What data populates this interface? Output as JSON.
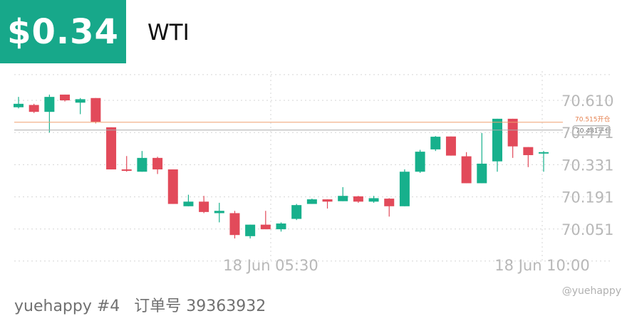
{
  "header": {
    "price": "$0.34",
    "symbol": "WTI"
  },
  "footer": {
    "user": "yuehappy #4",
    "order_label": "订单号 39363932",
    "watermark": "@yuehappy"
  },
  "colors": {
    "up": "#17b08c",
    "down": "#e24a5a",
    "accent": "#17a88a",
    "open_line": "#f0a070",
    "close_line": "#aaaaaa"
  },
  "chart_data": {
    "type": "candlestick",
    "y_ticks": [
      "70.610",
      "70.471",
      "70.331",
      "70.191",
      "70.051"
    ],
    "x_ticks": [
      "18 Jun 05:30",
      "18 Jun 10:00"
    ],
    "ylim": [
      69.98,
      70.72
    ],
    "grid": true,
    "lines": [
      {
        "label": "70.515开仓",
        "value": 70.515,
        "color": "#f0a070"
      },
      {
        "label": "70.481平仓",
        "value": 70.481,
        "color": "#aaaaaa"
      }
    ],
    "candles": [
      {
        "o": 70.58,
        "c": 70.595,
        "h": 70.625,
        "l": 70.575
      },
      {
        "o": 70.59,
        "c": 70.56,
        "h": 70.595,
        "l": 70.555
      },
      {
        "o": 70.56,
        "c": 70.625,
        "h": 70.635,
        "l": 70.47
      },
      {
        "o": 70.635,
        "c": 70.61,
        "h": 70.635,
        "l": 70.605
      },
      {
        "o": 70.6,
        "c": 70.615,
        "h": 70.62,
        "l": 70.55
      },
      {
        "o": 70.62,
        "c": 70.517,
        "h": 70.62,
        "l": 70.51
      },
      {
        "o": 70.493,
        "c": 70.31,
        "h": 70.493,
        "l": 70.31
      },
      {
        "o": 70.31,
        "c": 70.305,
        "h": 70.368,
        "l": 70.3
      },
      {
        "o": 70.3,
        "c": 70.36,
        "h": 70.39,
        "l": 70.3
      },
      {
        "o": 70.36,
        "c": 70.31,
        "h": 70.365,
        "l": 70.29
      },
      {
        "o": 70.31,
        "c": 70.16,
        "h": 70.31,
        "l": 70.16
      },
      {
        "o": 70.15,
        "c": 70.17,
        "h": 70.2,
        "l": 70.15
      },
      {
        "o": 70.17,
        "c": 70.125,
        "h": 70.195,
        "l": 70.12
      },
      {
        "o": 70.12,
        "c": 70.13,
        "h": 70.165,
        "l": 70.08
      },
      {
        "o": 70.12,
        "c": 70.025,
        "h": 70.13,
        "l": 70.01
      },
      {
        "o": 70.02,
        "c": 70.07,
        "h": 70.07,
        "l": 70.01
      },
      {
        "o": 70.07,
        "c": 70.05,
        "h": 70.13,
        "l": 70.05
      },
      {
        "o": 70.05,
        "c": 70.075,
        "h": 70.08,
        "l": 70.04
      },
      {
        "o": 70.095,
        "c": 70.155,
        "h": 70.16,
        "l": 70.09
      },
      {
        "o": 70.16,
        "c": 70.18,
        "h": 70.183,
        "l": 70.16
      },
      {
        "o": 70.18,
        "c": 70.17,
        "h": 70.18,
        "l": 70.14
      },
      {
        "o": 70.172,
        "c": 70.195,
        "h": 70.233,
        "l": 70.172
      },
      {
        "o": 70.193,
        "c": 70.17,
        "h": 70.195,
        "l": 70.165
      },
      {
        "o": 70.17,
        "c": 70.185,
        "h": 70.195,
        "l": 70.165
      },
      {
        "o": 70.183,
        "c": 70.15,
        "h": 70.185,
        "l": 70.105
      },
      {
        "o": 70.15,
        "c": 70.3,
        "h": 70.31,
        "l": 70.15
      },
      {
        "o": 70.3,
        "c": 70.387,
        "h": 70.395,
        "l": 70.295
      },
      {
        "o": 70.397,
        "c": 70.452,
        "h": 70.455,
        "l": 70.39
      },
      {
        "o": 70.453,
        "c": 70.37,
        "h": 70.453,
        "l": 70.37
      },
      {
        "o": 70.367,
        "c": 70.25,
        "h": 70.385,
        "l": 70.25
      },
      {
        "o": 70.25,
        "c": 70.335,
        "h": 70.468,
        "l": 70.25
      },
      {
        "o": 70.345,
        "c": 70.53,
        "h": 70.53,
        "l": 70.3
      },
      {
        "o": 70.53,
        "c": 70.41,
        "h": 70.53,
        "l": 70.36
      },
      {
        "o": 70.407,
        "c": 70.372,
        "h": 70.407,
        "l": 70.32
      },
      {
        "o": 70.38,
        "c": 70.385,
        "h": 70.39,
        "l": 70.3
      }
    ]
  }
}
